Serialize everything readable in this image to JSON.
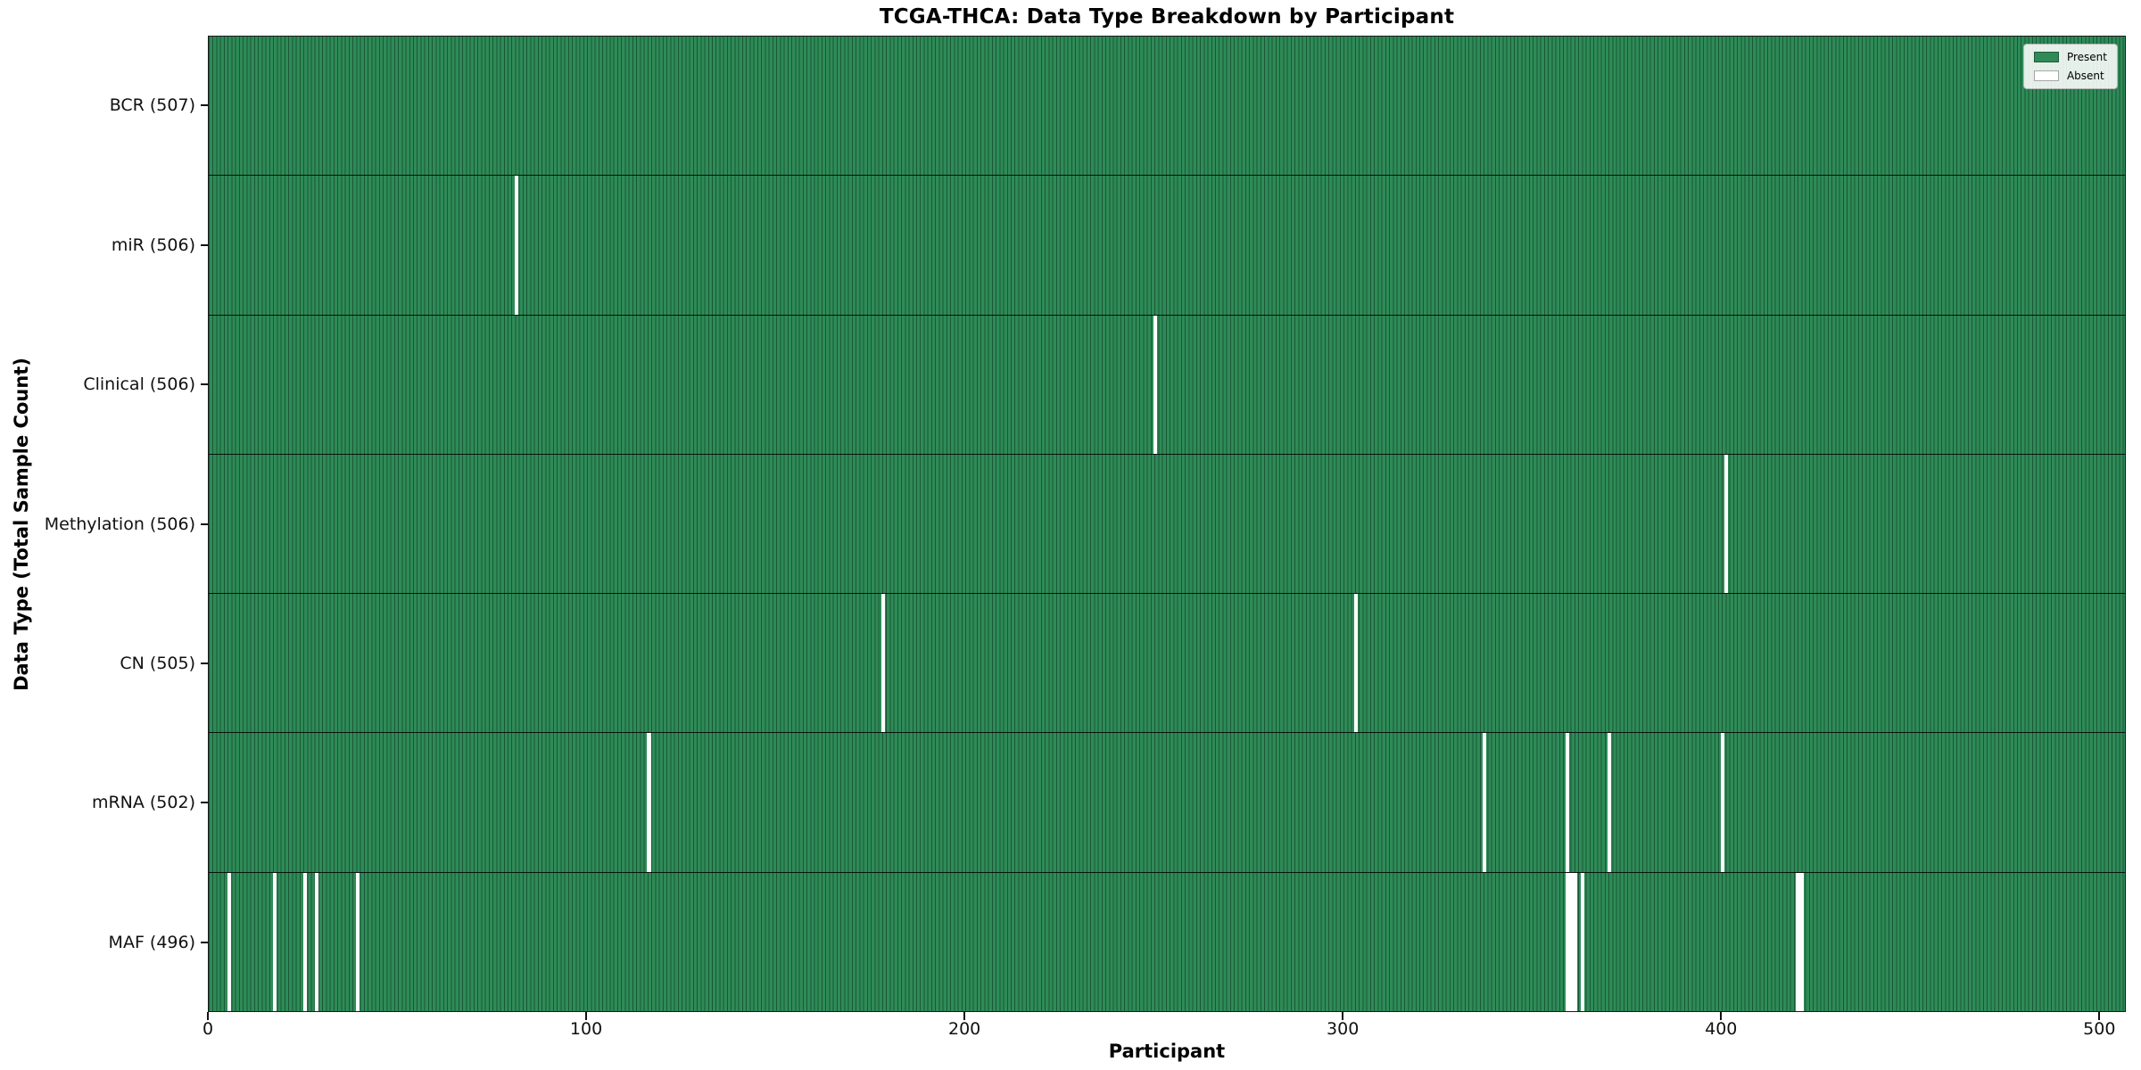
{
  "title": "TCGA-THCA: Data Type Breakdown by Participant",
  "xlabel": "Participant",
  "ylabel": "Data Type (Total Sample Count)",
  "legend": {
    "present_label": "Present",
    "absent_label": "Absent",
    "position": "upper right"
  },
  "colors": {
    "present": "#2e8b57",
    "absent": "#ffffff",
    "bar_edge": "#1b5737",
    "row_separator": "#1a1a1a"
  },
  "chart_data": {
    "type": "heatmap",
    "title": "TCGA-THCA: Data Type Breakdown by Participant",
    "xlabel": "Participant",
    "ylabel": "Data Type (Total Sample Count)",
    "x_axis": {
      "ticks": [
        0,
        100,
        200,
        300,
        400,
        500
      ],
      "range": [
        0,
        507
      ]
    },
    "total_participants": 507,
    "grid": false,
    "legend_entries": [
      "Present",
      "Absent"
    ],
    "rows": [
      {
        "data_type": "bcr",
        "label": "BCR (507)",
        "present_count": 507,
        "absent_participants": []
      },
      {
        "data_type": "mir",
        "label": "miR (506)",
        "present_count": 506,
        "absent_participants": [
          81
        ]
      },
      {
        "data_type": "clinical",
        "label": "Clinical (506)",
        "present_count": 506,
        "absent_participants": [
          250
        ]
      },
      {
        "data_type": "methylation",
        "label": "Methylation (506)",
        "present_count": 506,
        "absent_participants": [
          401
        ]
      },
      {
        "data_type": "cn",
        "label": "CN (505)",
        "present_count": 505,
        "absent_participants": [
          178,
          303
        ]
      },
      {
        "data_type": "mrna",
        "label": "mRNA (502)",
        "present_count": 502,
        "absent_participants": [
          116,
          337,
          359,
          370,
          400
        ]
      },
      {
        "data_type": "maf",
        "label": "MAF (496)",
        "present_count": 496,
        "absent_participants": [
          5,
          17,
          25,
          28,
          39,
          359,
          360,
          361,
          363,
          420,
          421
        ]
      }
    ]
  }
}
